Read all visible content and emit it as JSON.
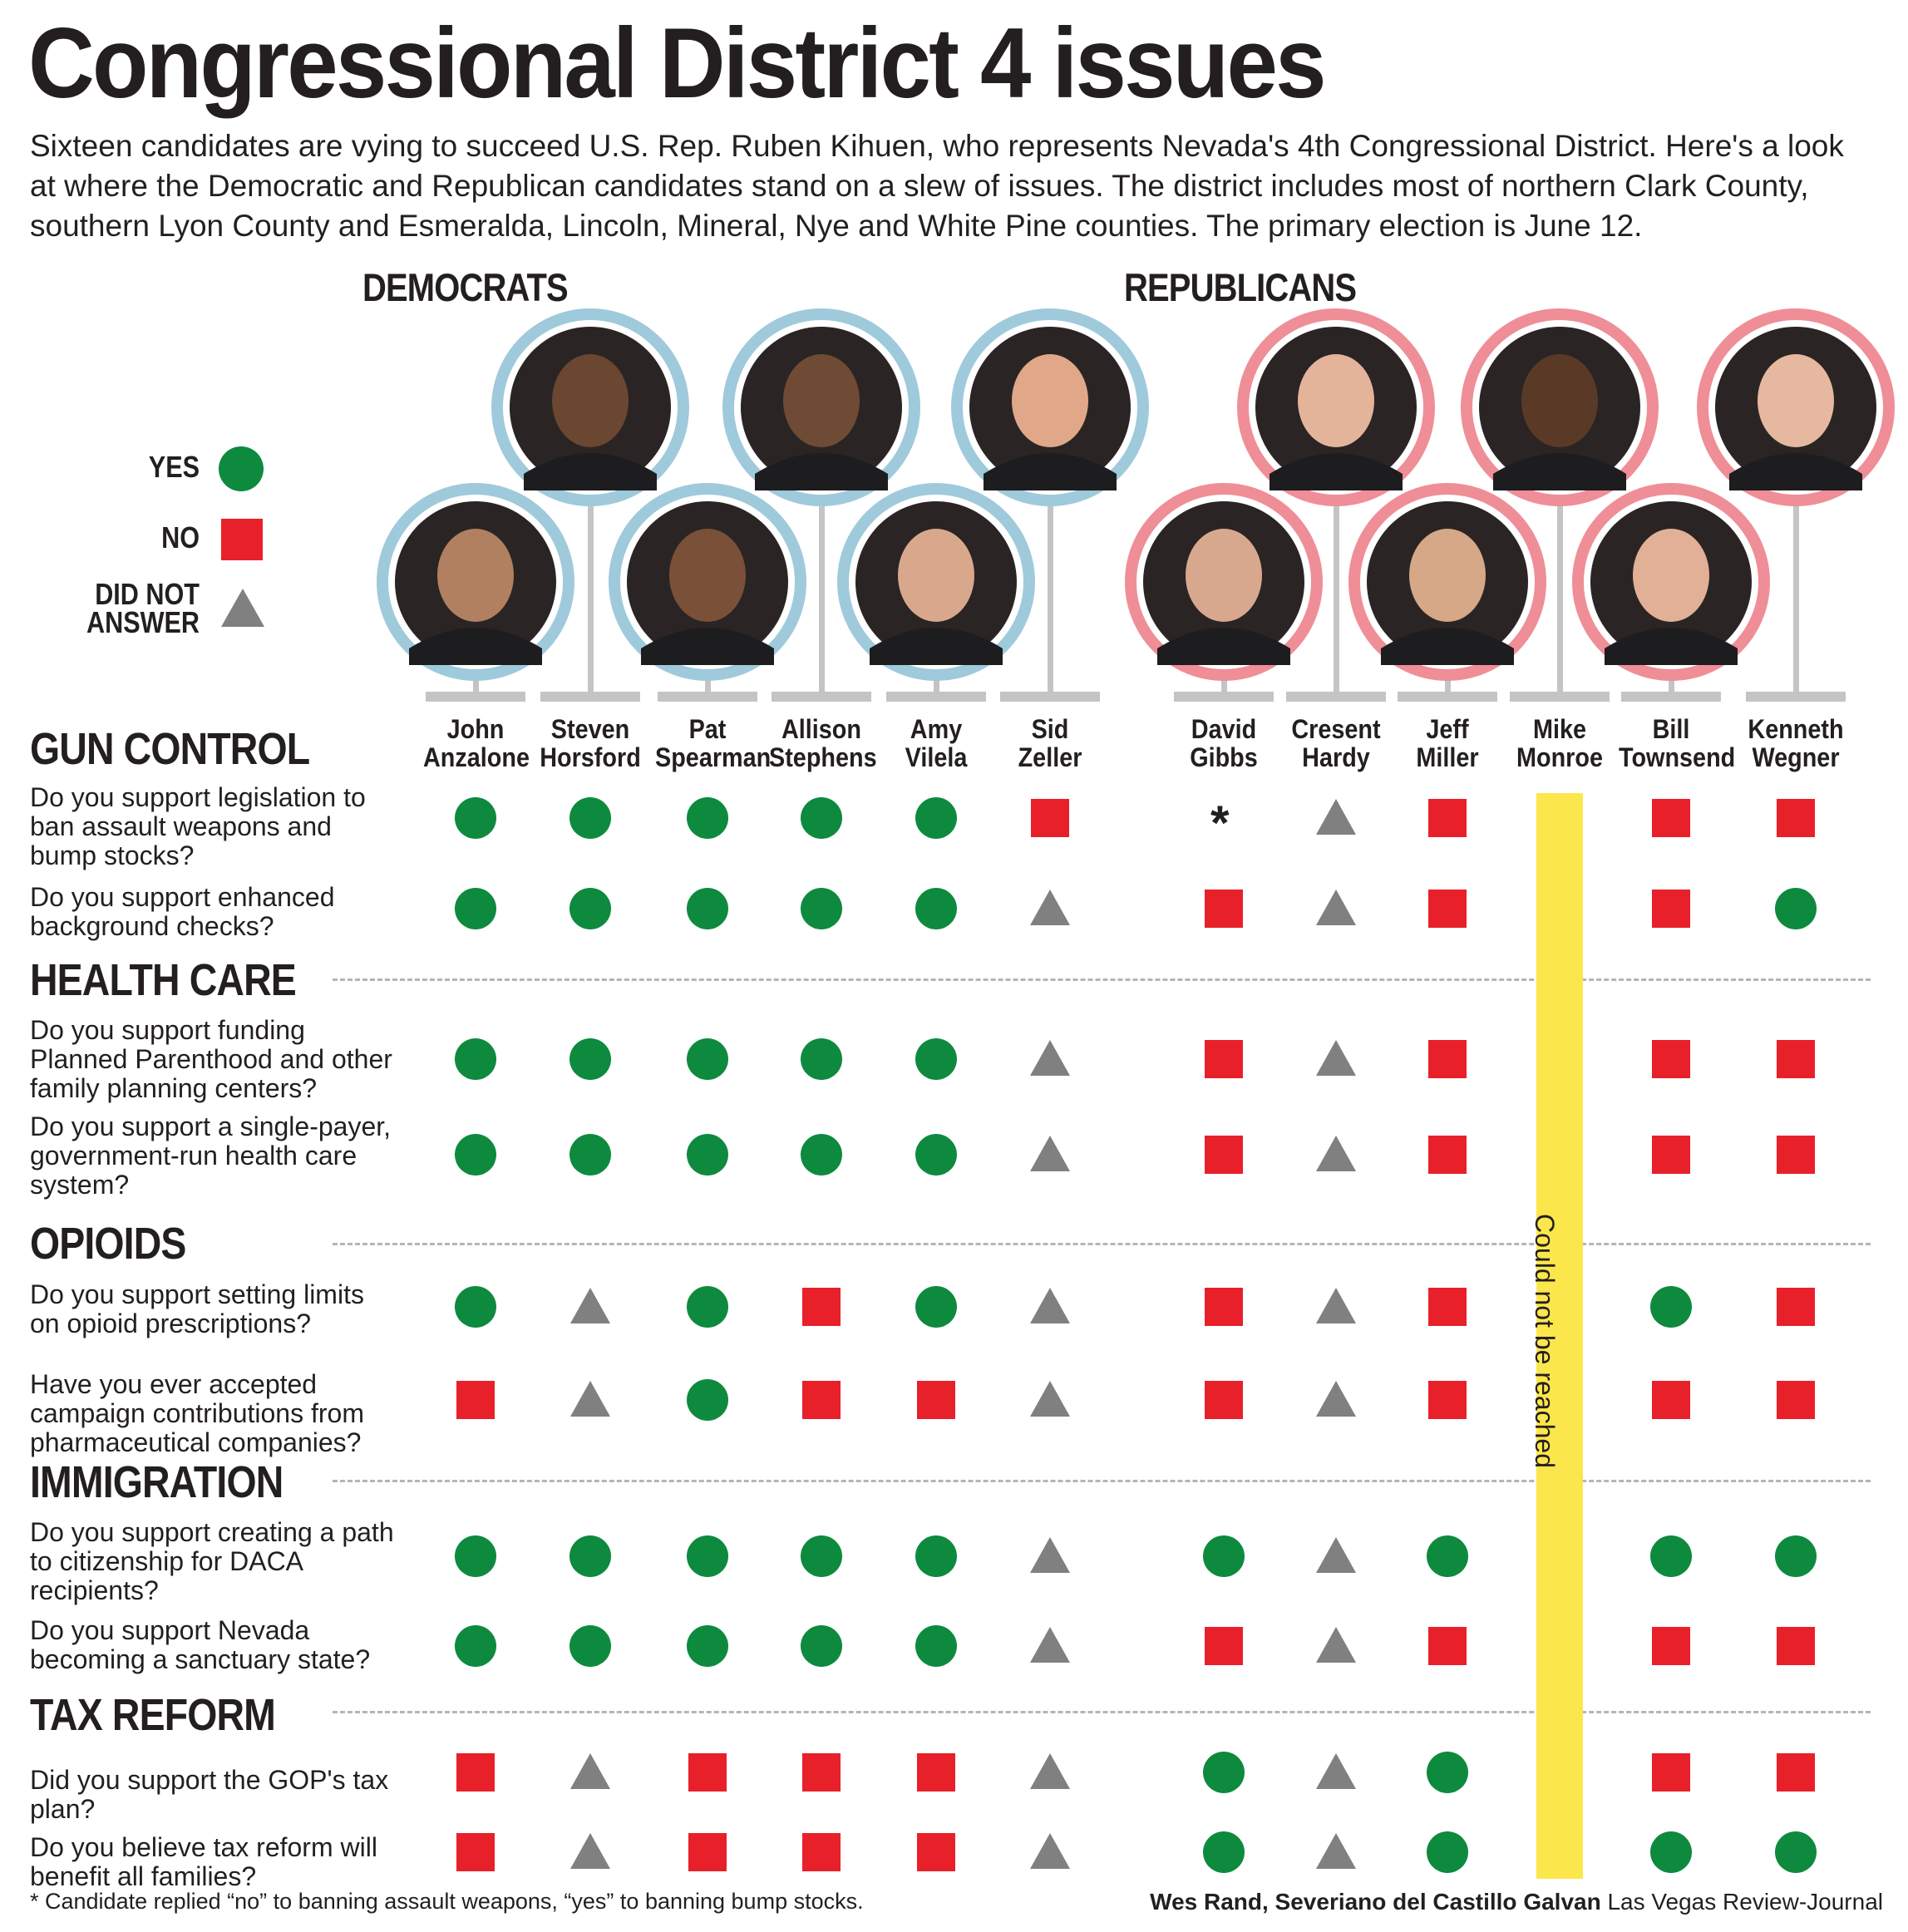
{
  "title": "Congressional District 4 issues",
  "intro": "Sixteen candidates are vying to succeed U.S. Rep. Ruben Kihuen, who represents Nevada's 4th Congressional District. Here's a look at where the Democratic and Republican candidates stand on a slew of issues. The district includes most of northern Clark County, southern Lyon County and Esmeralda, Lincoln, Mineral, Nye and White Pine counties. The primary election is June 12.",
  "parties": {
    "democrats": "DEMOCRATS",
    "republicans": "REPUBLICANS"
  },
  "legend": {
    "yes": "YES",
    "no": "NO",
    "dna_line1": "DID NOT",
    "dna_line2": "ANSWER"
  },
  "colors": {
    "yes": "#0d8a3e",
    "no": "#e8202a",
    "dna": "#808080",
    "dem_ring": "#9fcadb",
    "rep_ring": "#ef8e97",
    "bar": "#fbe74b",
    "stem": "#c4c4c4"
  },
  "candidates": [
    {
      "first": "John",
      "last": "Anzalone",
      "party": "dem"
    },
    {
      "first": "Steven",
      "last": "Horsford",
      "party": "dem"
    },
    {
      "first": "Pat",
      "last": "Spearman",
      "party": "dem"
    },
    {
      "first": "Allison",
      "last": "Stephens",
      "party": "dem"
    },
    {
      "first": "Amy",
      "last": "Vilela",
      "party": "dem"
    },
    {
      "first": "Sid",
      "last": "Zeller",
      "party": "dem"
    },
    {
      "first": "David",
      "last": "Gibbs",
      "party": "rep"
    },
    {
      "first": "Cresent",
      "last": "Hardy",
      "party": "rep"
    },
    {
      "first": "Jeff",
      "last": "Miller",
      "party": "rep"
    },
    {
      "first": "Mike",
      "last": "Monroe",
      "party": "rep"
    },
    {
      "first": "Bill",
      "last": "Townsend",
      "party": "rep"
    },
    {
      "first": "Kenneth",
      "last": "Wegner",
      "party": "rep"
    }
  ],
  "unreachable_note": "Could not be reached",
  "sections": [
    {
      "title": "GUN CONTROL",
      "questions": [
        {
          "text": "Do you support legislation to ban assault weapons and bump stocks?",
          "answers": [
            "Y",
            "Y",
            "Y",
            "Y",
            "Y",
            "N",
            "*",
            "D",
            "N",
            "-",
            "N",
            "N"
          ]
        },
        {
          "text": "Do you support enhanced background checks?",
          "answers": [
            "Y",
            "Y",
            "Y",
            "Y",
            "Y",
            "D",
            "N",
            "D",
            "N",
            "-",
            "N",
            "Y"
          ]
        }
      ]
    },
    {
      "title": "HEALTH CARE",
      "questions": [
        {
          "text": "Do you support funding Planned Parenthood and other family planning centers?",
          "answers": [
            "Y",
            "Y",
            "Y",
            "Y",
            "Y",
            "D",
            "N",
            "D",
            "N",
            "-",
            "N",
            "N"
          ]
        },
        {
          "text": "Do you support a single-payer, government-run health care system?",
          "answers": [
            "Y",
            "Y",
            "Y",
            "Y",
            "Y",
            "D",
            "N",
            "D",
            "N",
            "-",
            "N",
            "N"
          ]
        }
      ]
    },
    {
      "title": "OPIOIDS",
      "questions": [
        {
          "text": "Do you support setting limits on opioid prescriptions?",
          "answers": [
            "Y",
            "D",
            "Y",
            "N",
            "Y",
            "D",
            "N",
            "D",
            "N",
            "-",
            "Y",
            "N"
          ]
        },
        {
          "text": "Have you ever accepted campaign contributions from pharmaceutical companies?",
          "answers": [
            "N",
            "D",
            "Y",
            "N",
            "N",
            "D",
            "N",
            "D",
            "N",
            "-",
            "N",
            "N"
          ]
        }
      ]
    },
    {
      "title": "IMMIGRATION",
      "questions": [
        {
          "text": "Do you support creating a path to citizenship for DACA recipients?",
          "answers": [
            "Y",
            "Y",
            "Y",
            "Y",
            "Y",
            "D",
            "Y",
            "D",
            "Y",
            "-",
            "Y",
            "Y"
          ]
        },
        {
          "text": "Do you support Nevada becoming a sanctuary state?",
          "answers": [
            "Y",
            "Y",
            "Y",
            "Y",
            "Y",
            "D",
            "N",
            "D",
            "N",
            "-",
            "N",
            "N"
          ]
        }
      ]
    },
    {
      "title": "TAX REFORM",
      "questions": [
        {
          "text": "Did you support the GOP's tax plan?",
          "answers": [
            "N",
            "D",
            "N",
            "N",
            "N",
            "D",
            "Y",
            "D",
            "Y",
            "-",
            "N",
            "N"
          ]
        },
        {
          "text": "Do you believe tax reform will benefit all families?",
          "answers": [
            "N",
            "D",
            "N",
            "N",
            "N",
            "D",
            "Y",
            "D",
            "Y",
            "-",
            "Y",
            "Y"
          ]
        }
      ]
    }
  ],
  "asterisk": "*",
  "footnote": "* Candidate replied “no” to banning assault weapons, “yes” to banning bump stocks.",
  "credit": {
    "authors": "Wes Rand, Severiano del Castillo Galvan",
    "outlet": "Las Vegas Review-Journal"
  }
}
